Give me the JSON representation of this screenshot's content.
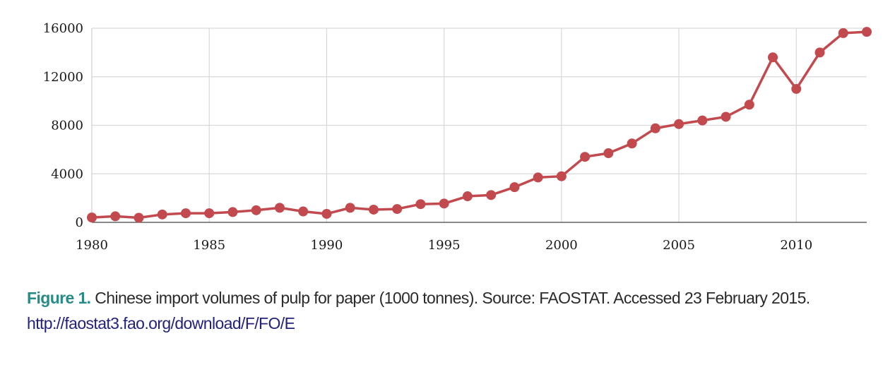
{
  "chart_data": {
    "type": "line",
    "x": [
      1980,
      1981,
      1982,
      1983,
      1984,
      1985,
      1986,
      1987,
      1988,
      1989,
      1990,
      1991,
      1992,
      1993,
      1994,
      1995,
      1996,
      1997,
      1998,
      1999,
      2000,
      2001,
      2002,
      2003,
      2004,
      2005,
      2006,
      2007,
      2008,
      2009,
      2010,
      2011,
      2012,
      2013
    ],
    "series": [
      {
        "values": [
          400,
          500,
          380,
          650,
          750,
          750,
          850,
          1000,
          1200,
          900,
          700,
          1200,
          1050,
          1100,
          1500,
          1550,
          2150,
          2250,
          2900,
          3700,
          3800,
          5400,
          5700,
          6500,
          7750,
          8100,
          8400,
          8700,
          9700,
          13600,
          11000,
          14000,
          15600,
          15700
        ],
        "color": "#c24a4f"
      }
    ],
    "xlim": [
      1980,
      2013
    ],
    "ylim": [
      0,
      16000
    ],
    "xticks": [
      1980,
      1985,
      1990,
      1995,
      2000,
      2005,
      2010
    ],
    "yticks": [
      0,
      4000,
      8000,
      12000,
      16000
    ],
    "xtick_labels": [
      "1980",
      "1985",
      "1990",
      "1995",
      "2000",
      "2005",
      "2010"
    ],
    "ytick_labels": [
      "0",
      "4000",
      "8000",
      "12000",
      "16000"
    ],
    "grid": true
  },
  "caption": {
    "label": "Figure 1.",
    "text": " Chinese import volumes of pulp for paper (1000 tonnes). Source: FAOSTAT. Accessed 23 February 2015. ",
    "url": "http://faostat3.fao.org/download/F/FO/E"
  },
  "colors": {
    "line": "#c24a4f",
    "label": "#2a8a86",
    "url": "#22227a"
  }
}
